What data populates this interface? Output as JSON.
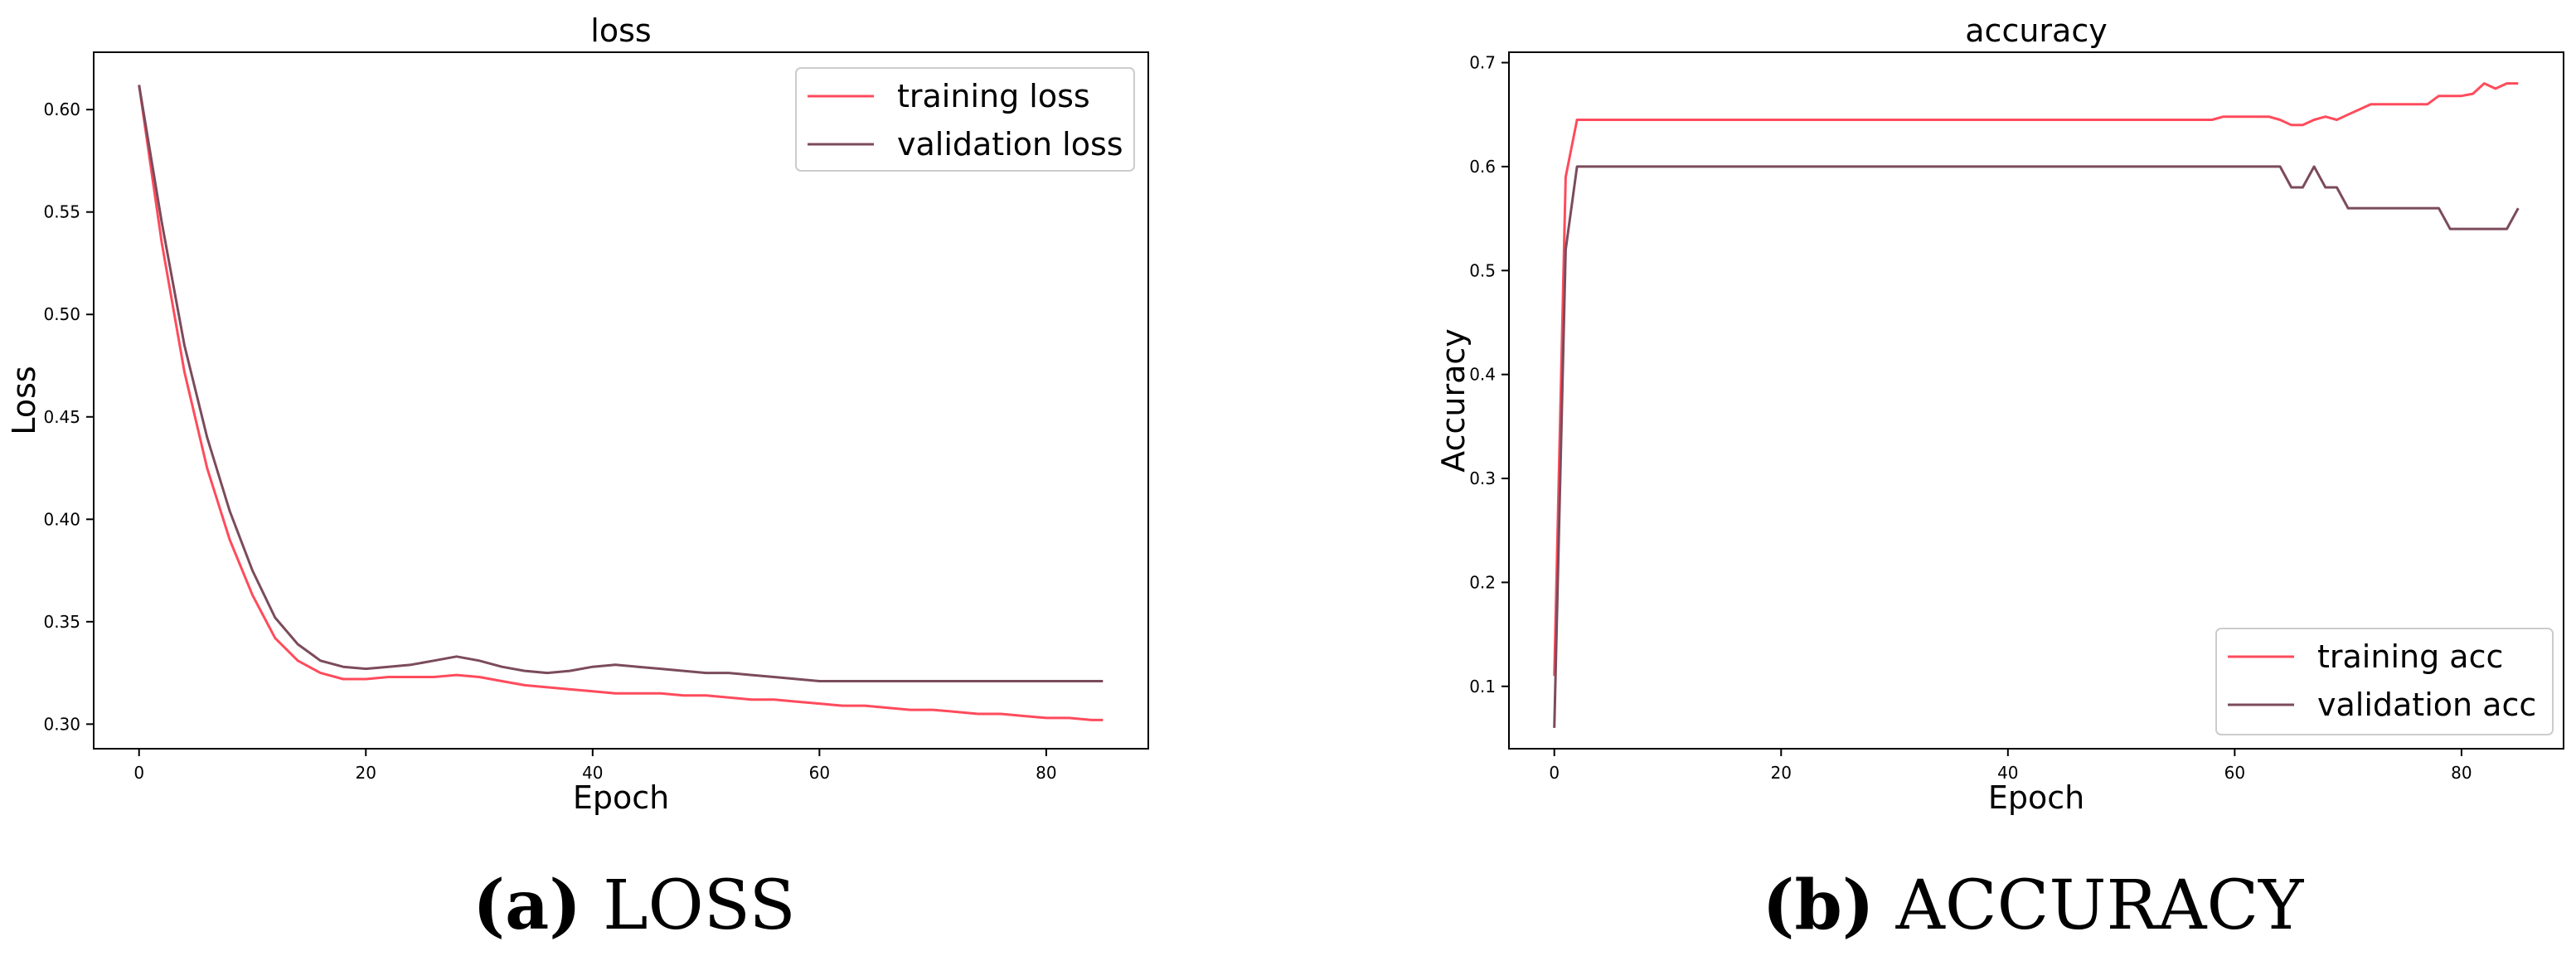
{
  "chart_data": [
    {
      "type": "line",
      "title": "loss",
      "xlabel": "Epoch",
      "ylabel": "Loss",
      "xlim": [
        -4,
        89
      ],
      "ylim": [
        0.288,
        0.628
      ],
      "xticks": [
        0,
        20,
        40,
        60,
        80
      ],
      "yticks": [
        0.3,
        0.35,
        0.4,
        0.45,
        0.5,
        0.55,
        0.6
      ],
      "ytick_labels": [
        "0.30",
        "0.35",
        "0.40",
        "0.45",
        "0.50",
        "0.55",
        "0.60"
      ],
      "grid": false,
      "legend": "top-right",
      "series": [
        {
          "name": "training loss",
          "color": "#ff4b5c",
          "x": [
            0,
            2,
            4,
            6,
            8,
            10,
            12,
            14,
            16,
            18,
            20,
            22,
            24,
            26,
            28,
            30,
            32,
            34,
            36,
            38,
            40,
            42,
            44,
            46,
            48,
            50,
            52,
            54,
            56,
            58,
            60,
            62,
            64,
            66,
            68,
            70,
            72,
            74,
            76,
            78,
            80,
            82,
            84,
            85
          ],
          "values": [
            0.612,
            0.535,
            0.472,
            0.425,
            0.39,
            0.363,
            0.342,
            0.331,
            0.325,
            0.322,
            0.322,
            0.323,
            0.323,
            0.323,
            0.324,
            0.323,
            0.321,
            0.319,
            0.318,
            0.317,
            0.316,
            0.315,
            0.315,
            0.315,
            0.314,
            0.314,
            0.313,
            0.312,
            0.312,
            0.311,
            0.31,
            0.309,
            0.309,
            0.308,
            0.307,
            0.307,
            0.306,
            0.305,
            0.305,
            0.304,
            0.303,
            0.303,
            0.302,
            0.302
          ]
        },
        {
          "name": "validation loss",
          "color": "#7b4b5c",
          "x": [
            0,
            2,
            4,
            6,
            8,
            10,
            12,
            14,
            16,
            18,
            20,
            22,
            24,
            26,
            28,
            30,
            32,
            34,
            36,
            38,
            40,
            42,
            44,
            46,
            48,
            50,
            52,
            54,
            56,
            58,
            60,
            62,
            64,
            66,
            68,
            70,
            72,
            74,
            76,
            78,
            80,
            82,
            84,
            85
          ],
          "values": [
            0.612,
            0.545,
            0.485,
            0.44,
            0.404,
            0.375,
            0.352,
            0.339,
            0.331,
            0.328,
            0.327,
            0.328,
            0.329,
            0.331,
            0.333,
            0.331,
            0.328,
            0.326,
            0.325,
            0.326,
            0.328,
            0.329,
            0.328,
            0.327,
            0.326,
            0.325,
            0.325,
            0.324,
            0.323,
            0.322,
            0.321,
            0.321,
            0.321,
            0.321,
            0.321,
            0.321,
            0.321,
            0.321,
            0.321,
            0.321,
            0.321,
            0.321,
            0.321,
            0.321
          ]
        }
      ]
    },
    {
      "type": "line",
      "title": "accuracy",
      "xlabel": "Epoch",
      "ylabel": "Accuracy",
      "xlim": [
        -4,
        89
      ],
      "ylim": [
        0.04,
        0.71
      ],
      "xticks": [
        0,
        20,
        40,
        60,
        80
      ],
      "yticks": [
        0.1,
        0.2,
        0.3,
        0.4,
        0.5,
        0.6,
        0.7
      ],
      "ytick_labels": [
        "0.1",
        "0.2",
        "0.3",
        "0.4",
        "0.5",
        "0.6",
        "0.7"
      ],
      "grid": false,
      "legend": "bottom-right",
      "series": [
        {
          "name": "training acc",
          "color": "#ff4b5c",
          "x": [
            0,
            1,
            2,
            58,
            59,
            63,
            64,
            65,
            66,
            67,
            68,
            69,
            70,
            71,
            72,
            73,
            74,
            75,
            76,
            77,
            78,
            79,
            80,
            81,
            82,
            83,
            84,
            85
          ],
          "values": [
            0.11,
            0.59,
            0.645,
            0.645,
            0.648,
            0.648,
            0.645,
            0.64,
            0.64,
            0.645,
            0.648,
            0.645,
            0.65,
            0.655,
            0.66,
            0.66,
            0.66,
            0.66,
            0.66,
            0.66,
            0.668,
            0.668,
            0.668,
            0.67,
            0.68,
            0.675,
            0.68,
            0.68
          ]
        },
        {
          "name": "validation acc",
          "color": "#7b4b5c",
          "x": [
            0,
            1,
            2,
            64,
            65,
            66,
            67,
            68,
            69,
            70,
            71,
            72,
            73,
            74,
            75,
            76,
            77,
            78,
            79,
            80,
            81,
            82,
            83,
            84,
            85
          ],
          "values": [
            0.06,
            0.52,
            0.6,
            0.6,
            0.58,
            0.58,
            0.6,
            0.58,
            0.58,
            0.56,
            0.56,
            0.56,
            0.56,
            0.56,
            0.56,
            0.56,
            0.56,
            0.56,
            0.54,
            0.54,
            0.54,
            0.54,
            0.54,
            0.54,
            0.56
          ]
        }
      ]
    }
  ],
  "captions": [
    {
      "letter": "(a)",
      "text": " LOSS"
    },
    {
      "letter": "(b)",
      "text": " ACCURACY"
    }
  ]
}
